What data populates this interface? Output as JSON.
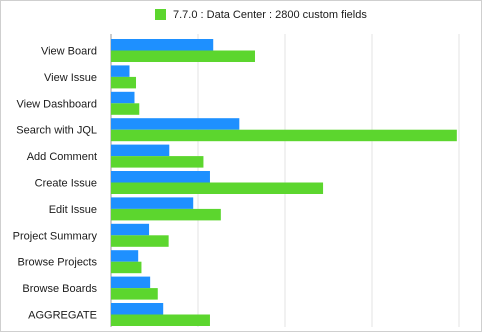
{
  "chart_data": {
    "type": "bar",
    "orientation": "horizontal",
    "categories": [
      "View Board",
      "View Issue",
      "View Dashboard",
      "Search with JQL",
      "Add Comment",
      "Create Issue",
      "Edit Issue",
      "Project Summary",
      "Browse Projects",
      "Browse Boards",
      "AGGREGATE"
    ],
    "series": [
      {
        "name": "",
        "color": "#1e90ff",
        "values": [
          470,
          85,
          108,
          590,
          268,
          455,
          378,
          175,
          125,
          180,
          240
        ]
      },
      {
        "name": "7.7.0 : Data Center : 2800 custom fields",
        "color": "#5cd62e",
        "values": [
          662,
          115,
          130,
          1590,
          425,
          975,
          505,
          265,
          140,
          215,
          455
        ]
      }
    ],
    "xlim": [
      0,
      1600
    ],
    "x_ticks": [
      0,
      400,
      800,
      1200,
      1600
    ],
    "grid": true,
    "legend": {
      "position": "top-center"
    }
  }
}
